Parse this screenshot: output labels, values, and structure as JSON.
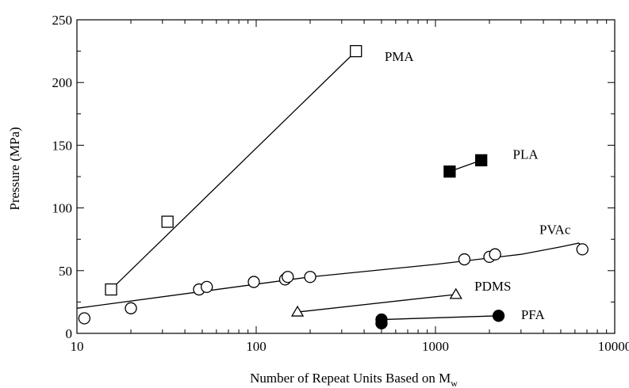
{
  "chart_data": {
    "type": "scatter",
    "xscale": "log",
    "xlim": [
      10,
      10000
    ],
    "ylim": [
      0,
      250
    ],
    "xticks": [
      10,
      100,
      1000,
      10000
    ],
    "yticks": [
      0,
      50,
      100,
      150,
      200,
      250
    ],
    "xlabel": "Number of Repeat Units Based on M",
    "xlabel_sub": "w",
    "ylabel": "Pressure (MPa)",
    "grid": false,
    "series": [
      {
        "name": "PMA",
        "marker": "open-square",
        "points": [
          [
            15.5,
            35
          ],
          [
            32,
            89
          ],
          [
            360,
            225
          ]
        ],
        "fit": [
          [
            15.5,
            35
          ],
          [
            360,
            225
          ]
        ]
      },
      {
        "name": "PLA",
        "marker": "filled-square",
        "points": [
          [
            1200,
            129
          ],
          [
            1800,
            138
          ]
        ],
        "fit": [
          [
            1200,
            129
          ],
          [
            1800,
            138
          ]
        ]
      },
      {
        "name": "PVAc",
        "marker": "open-circle",
        "points": [
          [
            11,
            12
          ],
          [
            20,
            20
          ],
          [
            48,
            35
          ],
          [
            53,
            37
          ],
          [
            97,
            41
          ],
          [
            145,
            43
          ],
          [
            150,
            45
          ],
          [
            200,
            45
          ],
          [
            1450,
            59
          ],
          [
            2000,
            61
          ],
          [
            2150,
            63
          ],
          [
            6600,
            67
          ]
        ],
        "fit": [
          [
            10,
            20
          ],
          [
            200,
            45
          ],
          [
            1000,
            55
          ],
          [
            3000,
            63
          ],
          [
            5000,
            69
          ],
          [
            6300,
            72
          ],
          [
            6600,
            69
          ]
        ]
      },
      {
        "name": "PDMS",
        "marker": "open-triangle",
        "points": [
          [
            170,
            17
          ],
          [
            1300,
            31
          ]
        ],
        "fit": [
          [
            170,
            17
          ],
          [
            1300,
            31
          ]
        ]
      },
      {
        "name": "PFA",
        "marker": "filled-circle",
        "points": [
          [
            500,
            8
          ],
          [
            500,
            11
          ],
          [
            2250,
            14
          ]
        ],
        "fit": [
          [
            500,
            11
          ],
          [
            2250,
            14
          ]
        ]
      }
    ],
    "annotations": [
      {
        "text": "PMA",
        "x": 520,
        "y": 221
      },
      {
        "text": "PLA",
        "x": 2700,
        "y": 143
      },
      {
        "text": "PVAc",
        "x": 3800,
        "y": 83
      },
      {
        "text": "PDMS",
        "x": 1650,
        "y": 38
      },
      {
        "text": "PFA",
        "x": 3000,
        "y": 15
      }
    ]
  }
}
